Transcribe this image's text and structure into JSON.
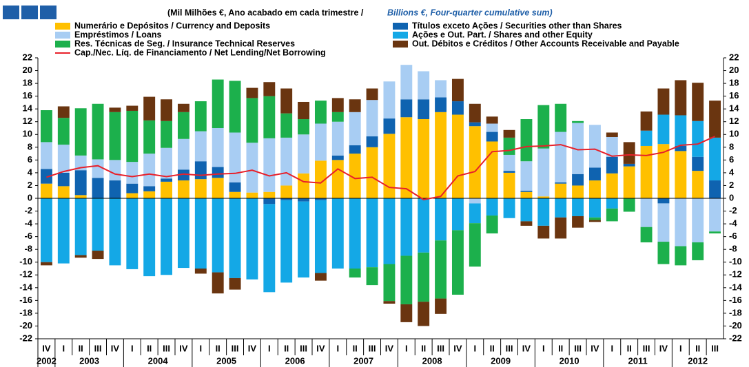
{
  "chart_data": {
    "type": "stacked_bar_line",
    "title_pt": "(Mil Milhões €, Ano acabado em cada trimestre  /",
    "title_en": "Billions  €, Four-quarter cumulative sum)",
    "categories": [
      "IV",
      "I",
      "II",
      "III",
      "IV",
      "I",
      "II",
      "III",
      "IV",
      "I",
      "II",
      "III",
      "IV",
      "I",
      "II",
      "III",
      "IV",
      "I",
      "II",
      "III",
      "IV",
      "I",
      "II",
      "III",
      "IV",
      "I",
      "II",
      "III",
      "IV",
      "I",
      "II",
      "III",
      "IV",
      "I",
      "II",
      "III",
      "IV",
      "I",
      "II",
      "III"
    ],
    "years": [
      "2002",
      "2003",
      "2004",
      "2005",
      "2006",
      "2007",
      "2008",
      "2009",
      "2010",
      "2011",
      "2012"
    ],
    "ylim": [
      -22,
      22
    ],
    "yticks": [
      -22,
      -20,
      -18,
      -16,
      -14,
      -12,
      -10,
      -8,
      -6,
      -4,
      -2,
      0,
      2,
      4,
      6,
      8,
      10,
      12,
      14,
      16,
      18,
      20,
      22
    ],
    "series": [
      {
        "name": "Numerário e Depósitos / Currency and Deposits",
        "color": "#ffc000",
        "values": [
          2.3,
          1.9,
          0.5,
          0,
          0,
          0.8,
          1.1,
          2.6,
          2.8,
          3.0,
          3.2,
          1.0,
          0.9,
          1.0,
          2.0,
          3.9,
          5.9,
          6.0,
          7.0,
          8.0,
          10.1,
          12.7,
          12.4,
          13.5,
          13.1,
          11.3,
          8.9,
          4.0,
          1.0,
          0.3,
          2.3,
          2.0,
          2.8,
          3.9,
          5.0,
          8.2,
          8.5,
          7.4,
          4.3,
          0
        ]
      },
      {
        "name": "Títulos exceto Ações / Securities other than Shares",
        "color": "#0f63b0",
        "values": [
          2.3,
          2.1,
          3.9,
          3.2,
          2.8,
          1.5,
          0.8,
          0.5,
          1.7,
          2.8,
          1.7,
          1.5,
          0,
          -0.9,
          -0.3,
          -0.5,
          -0.3,
          0.7,
          1.3,
          1.7,
          2.4,
          2.8,
          3.1,
          2.3,
          2.1,
          0.6,
          1.5,
          0.3,
          0.2,
          0,
          0.2,
          1.8,
          2.0,
          2.6,
          0.4,
          0,
          -0.8,
          0.8,
          2.2,
          2.8
        ]
      },
      {
        "name": "Empréstimos / Loans",
        "color": "#a8cdf3",
        "values": [
          4.2,
          4.4,
          2.3,
          2.9,
          3.2,
          3.4,
          5.1,
          4.8,
          4.8,
          4.7,
          6.1,
          7.8,
          7.8,
          8.4,
          7.5,
          6.1,
          5.8,
          5.3,
          5.2,
          5.7,
          5.8,
          5.4,
          4.4,
          2.7,
          0,
          -0.8,
          1.3,
          2.5,
          4.6,
          7.5,
          7.9,
          8.0,
          6.7,
          3.1,
          0,
          -4.5,
          -6.0,
          -7.5,
          -6.9,
          -5.2
        ]
      },
      {
        "name": "Ações e Out. Part. / Shares and other Equity",
        "color": "#14a8e6",
        "values": [
          -10.0,
          -10.2,
          -8.9,
          -8.2,
          -10.5,
          -11.1,
          -12.2,
          -12.0,
          -10.9,
          -11.0,
          -11.6,
          -12.5,
          -12.7,
          -13.8,
          -12.9,
          -11.9,
          -11.4,
          -11.0,
          -11.0,
          -10.8,
          -10.3,
          -9.0,
          -8.5,
          -6.6,
          -5.0,
          -3.1,
          -2.7,
          -3.1,
          -3.6,
          -4.3,
          -3.0,
          -2.8,
          -3.0,
          -1.6,
          0,
          2.4,
          4.6,
          4.8,
          5.6,
          6.7
        ]
      },
      {
        "name": "Res. Técnicas de Seg. / Insurance Technical Reserves",
        "color": "#1cb04c",
        "values": [
          5.0,
          4.2,
          7.4,
          8.7,
          7.5,
          8.0,
          5.2,
          4.2,
          4.2,
          4.7,
          7.6,
          8.1,
          7.0,
          6.6,
          3.8,
          2.4,
          3.6,
          1.5,
          -1.4,
          -2.8,
          -5.8,
          -7.6,
          -7.7,
          -9.1,
          -10.1,
          -6.8,
          -2.8,
          2.7,
          6.6,
          6.8,
          4.4,
          0.3,
          -0.4,
          -2.0,
          -2.1,
          -2.4,
          -3.5,
          -3.0,
          -2.8,
          -0.3
        ]
      },
      {
        "name": "Out. Débitos e Créditos / Other Accounts Receivable and Payable",
        "color": "#6a3510",
        "values": [
          -0.5,
          1.8,
          -0.4,
          -1.3,
          0.7,
          0.8,
          3.7,
          3.4,
          1.3,
          -0.8,
          -3.3,
          -1.8,
          1.6,
          2.2,
          3.9,
          2.7,
          -1.2,
          2.2,
          2.0,
          1.8,
          -0.4,
          -2.8,
          -3.8,
          -2.4,
          3.5,
          2.9,
          1.1,
          1.2,
          -0.7,
          -2.0,
          -3.3,
          -1.8,
          -0.3,
          0.7,
          3.4,
          3.0,
          4.1,
          5.5,
          6.0,
          5.8
        ]
      }
    ],
    "line": {
      "name": "Cap./Nec. Líq. de Financiamento / Net Lending/Net Borrowing",
      "color": "#e8202a",
      "values": [
        3.3,
        4.2,
        4.8,
        5.1,
        3.8,
        3.4,
        3.8,
        3.4,
        3.8,
        3.6,
        3.8,
        3.9,
        4.4,
        3.5,
        4.0,
        2.6,
        2.4,
        4.6,
        3.1,
        3.3,
        1.7,
        1.5,
        -0.2,
        0.3,
        3.5,
        4.2,
        7.3,
        7.5,
        8.1,
        8.2,
        8.4,
        7.6,
        7.7,
        6.6,
        6.8,
        6.7,
        7.2,
        8.3,
        8.5,
        9.7
      ]
    }
  }
}
